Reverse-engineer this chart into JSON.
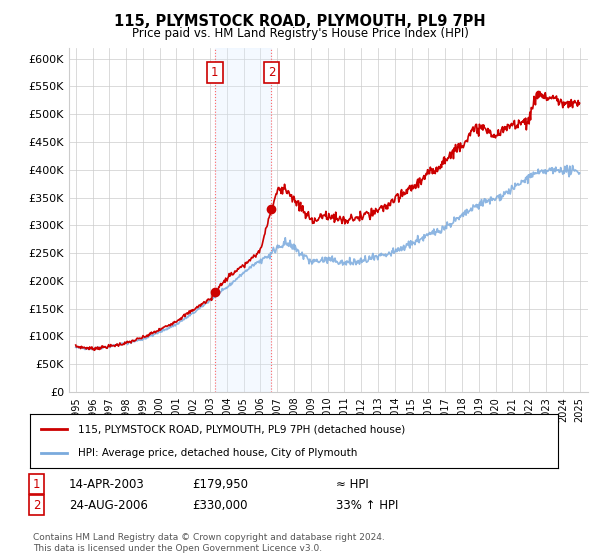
{
  "title": "115, PLYMSTOCK ROAD, PLYMOUTH, PL9 7PH",
  "subtitle": "Price paid vs. HM Land Registry's House Price Index (HPI)",
  "legend_label_red": "115, PLYMSTOCK ROAD, PLYMOUTH, PL9 7PH (detached house)",
  "legend_label_blue": "HPI: Average price, detached house, City of Plymouth",
  "annotation1_date": "14-APR-2003",
  "annotation1_price": "£179,950",
  "annotation1_hpi": "≈ HPI",
  "annotation2_date": "24-AUG-2006",
  "annotation2_price": "£330,000",
  "annotation2_hpi": "33% ↑ HPI",
  "footnote": "Contains HM Land Registry data © Crown copyright and database right 2024.\nThis data is licensed under the Open Government Licence v3.0.",
  "ylim": [
    0,
    620000
  ],
  "red_color": "#cc0000",
  "blue_color": "#7aaadd",
  "shading_color": "#ddeeff",
  "grid_color": "#cccccc",
  "background_color": "#ffffff",
  "purchase1_year": 2003.28,
  "purchase1_price": 179950,
  "purchase2_year": 2006.65,
  "purchase2_price": 330000,
  "hpi_knots_x": [
    1995,
    1996,
    1997,
    1998,
    1999,
    2000,
    2001,
    2002,
    2003,
    2004,
    2005,
    2006,
    2006.65,
    2007,
    2007.5,
    2008,
    2009,
    2010,
    2011,
    2012,
    2013,
    2014,
    2015,
    2016,
    2017,
    2018,
    2019,
    2020,
    2021,
    2022,
    2023,
    2024,
    2025
  ],
  "hpi_knots_y": [
    80000,
    78000,
    82000,
    88000,
    95000,
    108000,
    122000,
    142000,
    165000,
    188000,
    215000,
    238000,
    248000,
    262000,
    268000,
    258000,
    235000,
    238000,
    232000,
    235000,
    242000,
    252000,
    268000,
    282000,
    298000,
    316000,
    338000,
    348000,
    365000,
    388000,
    398000,
    400000,
    395000
  ],
  "red_knots_x": [
    1995,
    1996,
    1997,
    1998,
    1999,
    2000,
    2001,
    2002,
    2003,
    2003.28,
    2004,
    2005,
    2006,
    2006.65,
    2007,
    2007.5,
    2008,
    2009,
    2010,
    2011,
    2012,
    2013,
    2014,
    2015,
    2016,
    2017,
    2018,
    2019,
    2020,
    2021,
    2022,
    2022.5,
    2023,
    2023.5,
    2024,
    2024.5,
    2025
  ],
  "red_knots_y": [
    82000,
    78000,
    82000,
    88000,
    98000,
    112000,
    128000,
    148000,
    168000,
    179950,
    205000,
    228000,
    255000,
    330000,
    362000,
    368000,
    345000,
    310000,
    318000,
    308000,
    315000,
    325000,
    345000,
    368000,
    392000,
    418000,
    448000,
    478000,
    460000,
    482000,
    490000,
    540000,
    530000,
    530000,
    520000,
    515000,
    520000
  ]
}
